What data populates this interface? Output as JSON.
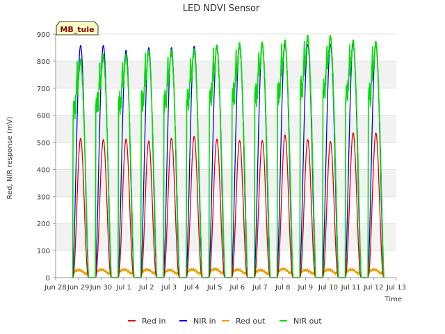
{
  "chart_data": {
    "type": "line",
    "title": "LED NDVI Sensor",
    "xlabel": "Time",
    "ylabel": "Red, NIR response (mV)",
    "ylim": [
      0,
      900
    ],
    "yticks": [
      0,
      100,
      200,
      300,
      400,
      500,
      600,
      700,
      800,
      900
    ],
    "xlim": [
      0,
      15
    ],
    "xticks": [
      {
        "pos": 0,
        "label": "Jun 28"
      },
      {
        "pos": 1,
        "label": "Jun 29"
      },
      {
        "pos": 2,
        "label": "Jun 30"
      },
      {
        "pos": 3,
        "label": "Jul 1"
      },
      {
        "pos": 4,
        "label": "Jul 2"
      },
      {
        "pos": 5,
        "label": "Jul 3"
      },
      {
        "pos": 6,
        "label": "Jul 4"
      },
      {
        "pos": 7,
        "label": "Jul 5"
      },
      {
        "pos": 8,
        "label": "Jul 6"
      },
      {
        "pos": 9,
        "label": "Jul 7"
      },
      {
        "pos": 10,
        "label": "Jul 8"
      },
      {
        "pos": 11,
        "label": "Jul 9"
      },
      {
        "pos": 12,
        "label": "Jul 10"
      },
      {
        "pos": 13,
        "label": "Jul 11"
      },
      {
        "pos": 14,
        "label": "Jul 12"
      },
      {
        "pos": 15,
        "label": "Jul 13"
      }
    ],
    "grid": "horizontal alternating bands",
    "legend_position": "bottom",
    "annotation": "MB_tule",
    "days": [
      "Jun 29",
      "Jun 30",
      "Jul 1",
      "Jul 2",
      "Jul 3",
      "Jul 4",
      "Jul 5",
      "Jul 6",
      "Jul 7",
      "Jul 8",
      "Jul 9",
      "Jul 10",
      "Jul 11",
      "Jul 12"
    ],
    "day_start": 0.75,
    "day_end": 1.45,
    "series": [
      {
        "name": "Red in",
        "color": "#dd0000",
        "daily_peaks": [
          515,
          510,
          512,
          505,
          515,
          522,
          512,
          507,
          507,
          527,
          510,
          503,
          535,
          535
        ]
      },
      {
        "name": "NIR in",
        "color": "#0000dd",
        "daily_peaks": [
          858,
          858,
          840,
          850,
          850,
          855,
          855,
          860,
          858,
          862,
          862,
          862,
          862,
          862
        ]
      },
      {
        "name": "Red out",
        "color": "#e8a000",
        "daily_peaks": [
          28,
          30,
          30,
          30,
          28,
          30,
          32,
          30,
          28,
          32,
          28,
          30,
          30,
          30
        ]
      },
      {
        "name": "NIR out",
        "color": "#00dd00",
        "daily_peaks": [
          808,
          825,
          825,
          840,
          842,
          845,
          860,
          868,
          870,
          878,
          895,
          895,
          878,
          872
        ]
      }
    ]
  }
}
